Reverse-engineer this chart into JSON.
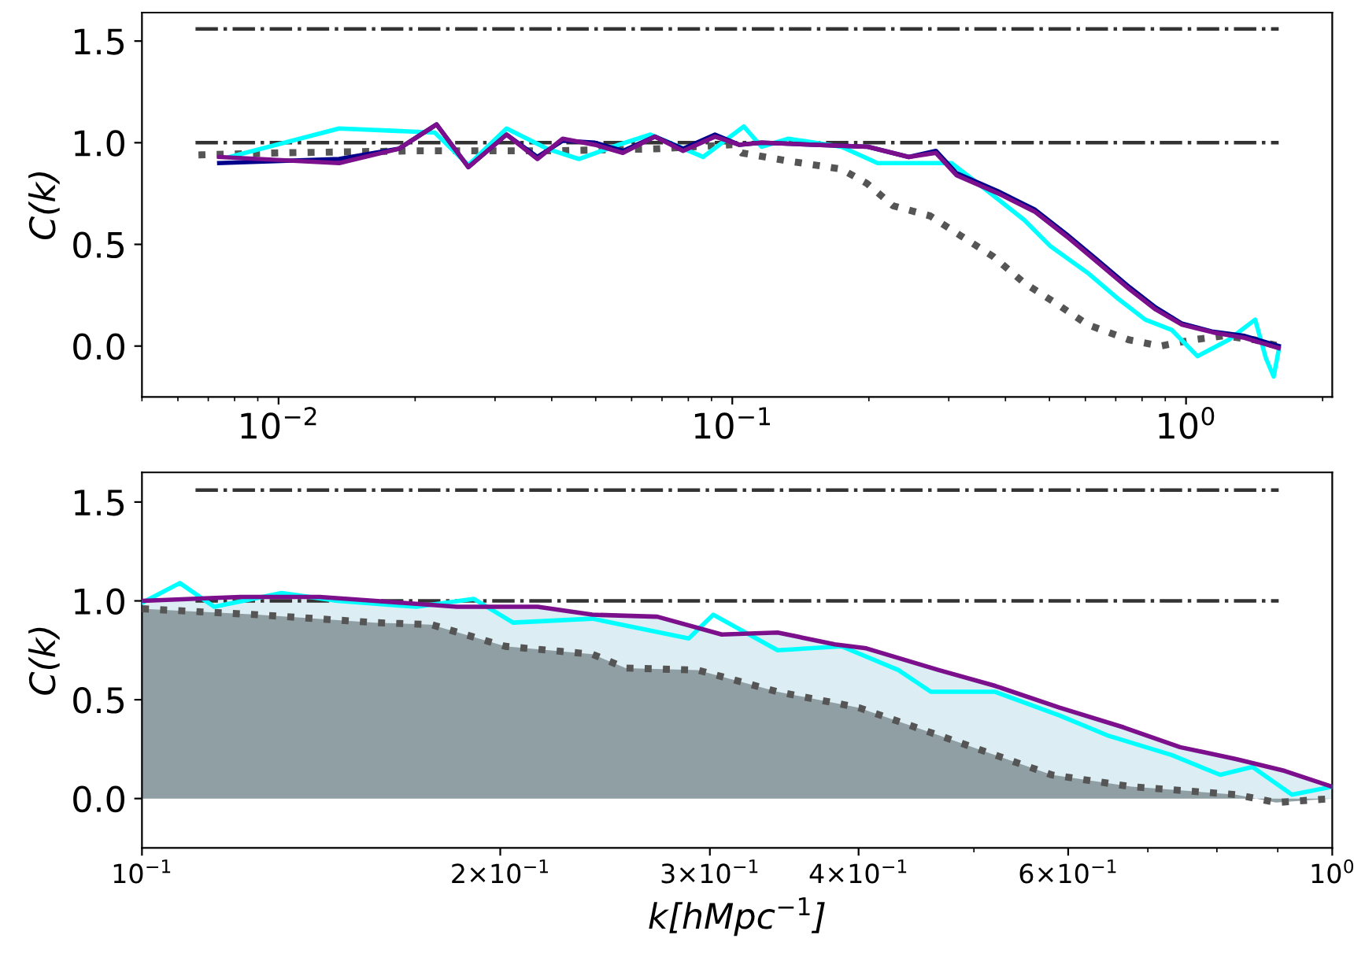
{
  "chart_data": [
    {
      "type": "line",
      "ylabel": "C(k)",
      "log": "x",
      "grid": false,
      "legend": false,
      "xlim": [
        0.005,
        2.1
      ],
      "ylim": [
        -0.25,
        1.64
      ],
      "xticks": [
        {
          "value": 0.01,
          "label": "10$^{−2}$"
        },
        {
          "value": 0.1,
          "label": "10$^{−1}$"
        },
        {
          "value": 1,
          "label": "10$^{0}$"
        }
      ],
      "yticks": [
        {
          "value": 0,
          "label": "0.0"
        },
        {
          "value": 0.5,
          "label": "0.5"
        },
        {
          "value": 1,
          "label": "1.0"
        },
        {
          "value": 1.5,
          "label": "1.5"
        }
      ],
      "ref_lines": [
        {
          "axis": "y",
          "value": 1.0,
          "color": "#333333",
          "line_style": "dashdot"
        },
        {
          "axis": "y",
          "value": 1.56,
          "color": "#333333",
          "line_style": "dashdot"
        }
      ],
      "series": [
        {
          "type": "line",
          "color": "#555555",
          "line_style": "dotted",
          "x": [
            0.00666,
            0.01,
            0.02,
            0.04,
            0.068,
            0.1,
            0.105,
            0.133,
            0.174,
            0.198,
            0.226,
            0.273,
            0.32,
            0.376,
            0.44,
            0.517,
            0.607,
            0.75,
            0.88,
            1.03,
            1.21,
            1.42,
            1.6
          ],
          "values": [
            0.94,
            0.95,
            0.96,
            0.96,
            0.97,
            0.99,
            0.95,
            0.91,
            0.87,
            0.8,
            0.69,
            0.64,
            0.54,
            0.44,
            0.31,
            0.21,
            0.105,
            0.03,
            0.0,
            0.03,
            0.05,
            0.03,
            0.0
          ]
        },
        {
          "type": "line",
          "color": "#00ffff",
          "x": [
            0.0078,
            0.0136,
            0.0221,
            0.0262,
            0.0318,
            0.0391,
            0.0459,
            0.0562,
            0.066,
            0.0862,
            0.106,
            0.116,
            0.133,
            0.174,
            0.209,
            0.252,
            0.304,
            0.357,
            0.44,
            0.503,
            0.607,
            0.711,
            0.813,
            0.929,
            1.06,
            1.24,
            1.42,
            1.5,
            1.56,
            1.6
          ],
          "values": [
            0.93,
            1.07,
            1.05,
            0.89,
            1.07,
            0.97,
            0.92,
            0.99,
            1.04,
            0.93,
            1.08,
            0.98,
            1.02,
            0.98,
            0.9,
            0.9,
            0.9,
            0.78,
            0.62,
            0.49,
            0.36,
            0.23,
            0.13,
            0.08,
            -0.05,
            0.03,
            0.13,
            -0.06,
            -0.15,
            -0.02
          ]
        },
        {
          "type": "line",
          "color": "#00008b",
          "x": [
            0.0074,
            0.0136,
            0.0184,
            0.0223,
            0.0262,
            0.0318,
            0.0372,
            0.0423,
            0.0498,
            0.0574,
            0.0675,
            0.0779,
            0.0916,
            0.1035,
            0.116,
            0.152,
            0.199,
            0.245,
            0.281,
            0.312,
            0.386,
            0.465,
            0.545,
            0.64,
            0.75,
            0.857,
            0.98,
            1.148,
            1.346,
            1.6
          ],
          "values": [
            0.9,
            0.92,
            0.97,
            1.09,
            0.88,
            1.04,
            0.93,
            1.01,
            1.0,
            0.96,
            1.03,
            0.97,
            1.04,
            0.99,
            1.0,
            0.99,
            0.98,
            0.93,
            0.96,
            0.85,
            0.76,
            0.67,
            0.55,
            0.42,
            0.29,
            0.19,
            0.11,
            0.07,
            0.05,
            0.0
          ]
        },
        {
          "type": "line",
          "color": "#7b0f8c",
          "x": [
            0.0074,
            0.0136,
            0.0184,
            0.0223,
            0.0262,
            0.0318,
            0.0372,
            0.0423,
            0.0498,
            0.0574,
            0.0675,
            0.0779,
            0.0916,
            0.1035,
            0.116,
            0.152,
            0.199,
            0.245,
            0.281,
            0.312,
            0.386,
            0.465,
            0.545,
            0.64,
            0.75,
            0.857,
            0.98,
            1.148,
            1.346,
            1.6
          ],
          "values": [
            0.93,
            0.9,
            0.97,
            1.09,
            0.88,
            1.04,
            0.92,
            1.02,
            0.99,
            0.95,
            1.03,
            0.96,
            1.03,
            0.99,
            1.0,
            0.99,
            0.98,
            0.93,
            0.95,
            0.84,
            0.75,
            0.66,
            0.54,
            0.41,
            0.28,
            0.18,
            0.105,
            0.067,
            0.04,
            -0.01
          ]
        }
      ]
    },
    {
      "type": "line",
      "ylabel": "C(k)",
      "xlabel": "k[hMpc$^{−1}$]",
      "log": "x",
      "grid": false,
      "legend": false,
      "xlim": [
        0.1,
        1
      ],
      "ylim": [
        -0.25,
        1.65
      ],
      "xticks": [
        {
          "value": 0.1,
          "label": "10$^{−1}$"
        },
        {
          "value": 0.2,
          "label": "2×10$^{−1}$"
        },
        {
          "value": 0.3,
          "label": "3×10$^{−1}$"
        },
        {
          "value": 0.4,
          "label": "4×10$^{−1}$"
        },
        {
          "value": 0.6,
          "label": "6×10$^{−1}$"
        },
        {
          "value": 1,
          "label": "10$^{0}$"
        }
      ],
      "yticks": [
        {
          "value": 0,
          "label": "0.0"
        },
        {
          "value": 0.5,
          "label": "0.5"
        },
        {
          "value": 1,
          "label": "1.0"
        },
        {
          "value": 1.5,
          "label": "1.5"
        }
      ],
      "ref_lines": [
        {
          "axis": "y",
          "value": 1.0,
          "color": "#333333",
          "line_style": "dashdot"
        },
        {
          "axis": "y",
          "value": 1.56,
          "color": "#333333",
          "line_style": "dashdot"
        }
      ],
      "series": [
        {
          "type": "area",
          "color": "#555555",
          "colors": [
            "#909fa4",
            "#909fa4",
            "#909fa4",
            "#909fa4",
            "#909fa4",
            "#909fa4",
            "#909fa4",
            "#909fa4",
            "#909fa4",
            "#909fa4",
            "#909fa4",
            "#909fa4",
            "#909fa4",
            "#909fa4",
            "#909fa4",
            "#909fa4",
            "#909fa4"
          ],
          "line_style": "dotted",
          "x": [
            0.1,
            0.125,
            0.157,
            0.175,
            0.202,
            0.239,
            0.255,
            0.293,
            0.342,
            0.4,
            0.467,
            0.521,
            0.581,
            0.678,
            0.83,
            0.897,
            1.0
          ],
          "values": [
            0.96,
            0.93,
            0.89,
            0.88,
            0.77,
            0.73,
            0.66,
            0.65,
            0.54,
            0.46,
            0.32,
            0.22,
            0.12,
            0.06,
            0.02,
            -0.02,
            0.0
          ]
        },
        {
          "type": "line",
          "color": "#00ffff",
          "x": [
            0.1,
            0.1076,
            0.115,
            0.131,
            0.146,
            0.17,
            0.19,
            0.205,
            0.239,
            0.288,
            0.302,
            0.342,
            0.387,
            0.432,
            0.46,
            0.521,
            0.59,
            0.647,
            0.733,
            0.805,
            0.857,
            0.925,
            1.0
          ],
          "values": [
            0.99,
            1.09,
            0.97,
            1.04,
            1.0,
            0.97,
            1.01,
            0.89,
            0.91,
            0.81,
            0.93,
            0.75,
            0.77,
            0.65,
            0.54,
            0.54,
            0.42,
            0.32,
            0.22,
            0.12,
            0.16,
            0.02,
            0.06
          ]
        },
        {
          "type": "area",
          "color": "#7b0f8c",
          "colors": [
            "#dcedf3",
            "#dcedf3",
            "#dcedf3",
            "#dcedf3",
            "#dcedf3",
            "#dcedf3",
            "#dcedf3",
            "#dcedf3",
            "#dcedf3",
            "#dcedf3",
            "#dcedf3",
            "#dcedf3",
            "#dcedf3",
            "#dcedf3",
            "#dcedf3",
            "#dcedf3",
            "#dcedf3",
            "#dcedf3",
            "#dcedf3",
            "#dcedf3"
          ],
          "x": [
            0.1,
            0.121,
            0.141,
            0.157,
            0.184,
            0.215,
            0.239,
            0.271,
            0.307,
            0.342,
            0.382,
            0.406,
            0.467,
            0.521,
            0.59,
            0.668,
            0.745,
            0.83,
            0.912,
            1.0
          ],
          "values": [
            1.0,
            1.02,
            1.02,
            1.0,
            0.97,
            0.97,
            0.93,
            0.92,
            0.83,
            0.84,
            0.78,
            0.76,
            0.65,
            0.57,
            0.46,
            0.36,
            0.26,
            0.2,
            0.14,
            0.06
          ]
        }
      ]
    }
  ]
}
